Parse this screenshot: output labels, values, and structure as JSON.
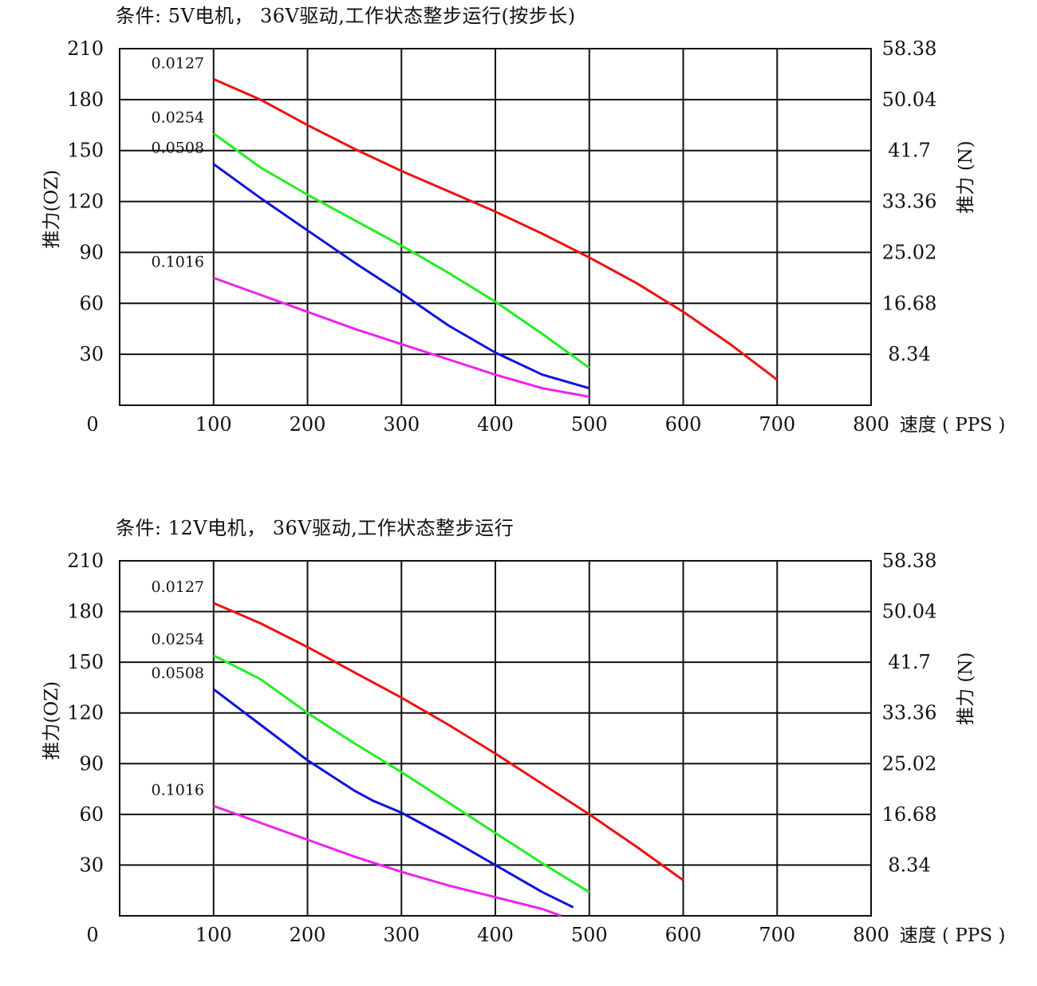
{
  "charts": [
    {
      "title": "条件: 5V电机， 36V驱动,工作状态整步运行(按步长)",
      "ylabel_left": "推力(OZ)",
      "ylabel_right": "推力 (N)",
      "xlabel": "速度 ( PPS )",
      "origin_label": "0"
    },
    {
      "title": "条件: 12V电机， 36V驱动,工作状态整步运行",
      "ylabel_left": "推力(OZ)",
      "ylabel_right": "推力 (N)",
      "xlabel": "速度 ( PPS )",
      "origin_label": "0"
    }
  ],
  "chart_data": [
    {
      "type": "line",
      "title": "条件: 5V电机， 36V驱动,工作状态整步运行(按步长)",
      "xlabel": "速度 ( PPS )",
      "ylabel": "推力(OZ)",
      "ylabel_right": "推力 (N)",
      "xlim": [
        0,
        800
      ],
      "ylim": [
        0,
        210
      ],
      "xticks": [
        "100",
        "200",
        "300",
        "400",
        "500",
        "600",
        "700",
        "800"
      ],
      "yticks": [
        "30",
        "60",
        "90",
        "120",
        "150",
        "180",
        "210"
      ],
      "yticks_right": [
        "8.34",
        "16.68",
        "25.02",
        "33.36",
        "41.7",
        "50.04",
        "58.38"
      ],
      "grid": true,
      "series": [
        {
          "name": "0.0127",
          "color": "#ee1111",
          "x": [
            100,
            150,
            200,
            250,
            300,
            350,
            400,
            450,
            500,
            550,
            600,
            650,
            700
          ],
          "y": [
            192,
            180,
            165,
            151,
            138,
            126,
            114,
            101,
            87,
            72,
            55,
            36,
            15
          ]
        },
        {
          "name": "0.0254",
          "color": "#22ee22",
          "x": [
            100,
            150,
            200,
            250,
            300,
            350,
            400,
            450,
            500
          ],
          "y": [
            160,
            140,
            124,
            109,
            94,
            78,
            61,
            42,
            22
          ]
        },
        {
          "name": "0.0508",
          "color": "#1111dd",
          "x": [
            100,
            150,
            200,
            250,
            300,
            350,
            400,
            450,
            500
          ],
          "y": [
            142,
            122,
            103,
            84,
            66,
            47,
            31,
            18,
            10
          ]
        },
        {
          "name": "0.1016",
          "color": "#ee22ee",
          "x": [
            100,
            150,
            200,
            250,
            300,
            350,
            400,
            450,
            500
          ],
          "y": [
            75,
            65,
            55,
            45,
            36,
            27,
            18,
            10,
            5
          ]
        }
      ]
    },
    {
      "type": "line",
      "title": "条件: 12V电机， 36V驱动,工作状态整步运行",
      "xlabel": "速度 ( PPS )",
      "ylabel": "推力(OZ)",
      "ylabel_right": "推力 (N)",
      "xlim": [
        0,
        800
      ],
      "ylim": [
        0,
        210
      ],
      "xticks": [
        "100",
        "200",
        "300",
        "400",
        "500",
        "600",
        "700",
        "800"
      ],
      "yticks": [
        "30",
        "60",
        "90",
        "120",
        "150",
        "180",
        "210"
      ],
      "yticks_right": [
        "8.34",
        "16.68",
        "25.02",
        "33.36",
        "41.7",
        "50.04",
        "58.38"
      ],
      "grid": true,
      "series": [
        {
          "name": "0.0127",
          "color": "#ee1111",
          "x": [
            100,
            150,
            200,
            250,
            300,
            350,
            400,
            450,
            500,
            550,
            600
          ],
          "y": [
            185,
            173,
            159,
            144,
            129,
            113,
            96,
            78,
            60,
            41,
            21
          ]
        },
        {
          "name": "0.0254",
          "color": "#22ee22",
          "x": [
            100,
            150,
            200,
            250,
            300,
            350,
            400,
            450,
            500
          ],
          "y": [
            154,
            140,
            120,
            102,
            85,
            67,
            49,
            31,
            14
          ]
        },
        {
          "name": "0.0508",
          "color": "#1111dd",
          "x": [
            100,
            150,
            200,
            250,
            270,
            300,
            350,
            400,
            450,
            483
          ],
          "y": [
            134,
            113,
            92,
            74,
            68,
            61,
            46,
            30,
            14,
            5
          ]
        },
        {
          "name": "0.1016",
          "color": "#ee22ee",
          "x": [
            100,
            150,
            200,
            250,
            300,
            350,
            400,
            450,
            470
          ],
          "y": [
            65,
            55,
            45,
            35,
            26,
            18,
            11,
            4,
            0
          ]
        }
      ]
    }
  ]
}
